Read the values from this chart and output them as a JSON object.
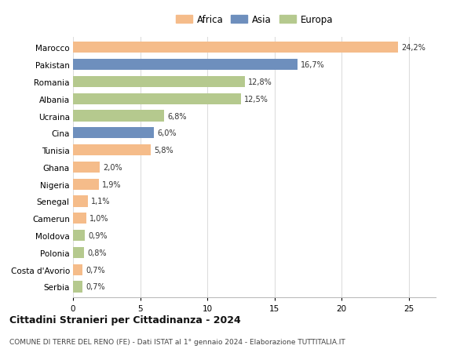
{
  "countries": [
    "Marocco",
    "Pakistan",
    "Romania",
    "Albania",
    "Ucraina",
    "Cina",
    "Tunisia",
    "Ghana",
    "Nigeria",
    "Senegal",
    "Camerun",
    "Moldova",
    "Polonia",
    "Costa d'Avorio",
    "Serbia"
  ],
  "values": [
    24.2,
    16.7,
    12.8,
    12.5,
    6.8,
    6.0,
    5.8,
    2.0,
    1.9,
    1.1,
    1.0,
    0.9,
    0.8,
    0.7,
    0.7
  ],
  "labels": [
    "24,2%",
    "16,7%",
    "12,8%",
    "12,5%",
    "6,8%",
    "6,0%",
    "5,8%",
    "2,0%",
    "1,9%",
    "1,1%",
    "1,0%",
    "0,9%",
    "0,8%",
    "0,7%",
    "0,7%"
  ],
  "continents": [
    "Africa",
    "Asia",
    "Europa",
    "Europa",
    "Europa",
    "Asia",
    "Africa",
    "Africa",
    "Africa",
    "Africa",
    "Africa",
    "Europa",
    "Europa",
    "Africa",
    "Europa"
  ],
  "colors": {
    "Africa": "#F5BC8A",
    "Asia": "#6E8FBD",
    "Europa": "#B5C98E"
  },
  "legend_labels": [
    "Africa",
    "Asia",
    "Europa"
  ],
  "title": "Cittadini Stranieri per Cittadinanza - 2024",
  "subtitle": "COMUNE DI TERRE DEL RENO (FE) - Dati ISTAT al 1° gennaio 2024 - Elaborazione TUTTITALIA.IT",
  "xlim": [
    0,
    27
  ],
  "xticks": [
    0,
    5,
    10,
    15,
    20,
    25
  ],
  "bg_color": "#ffffff",
  "grid_color": "#dddddd",
  "bar_height": 0.65,
  "label_fontsize": 7.0,
  "ytick_fontsize": 7.5,
  "xtick_fontsize": 7.5,
  "title_fontsize": 9.0,
  "subtitle_fontsize": 6.5,
  "legend_fontsize": 8.5
}
